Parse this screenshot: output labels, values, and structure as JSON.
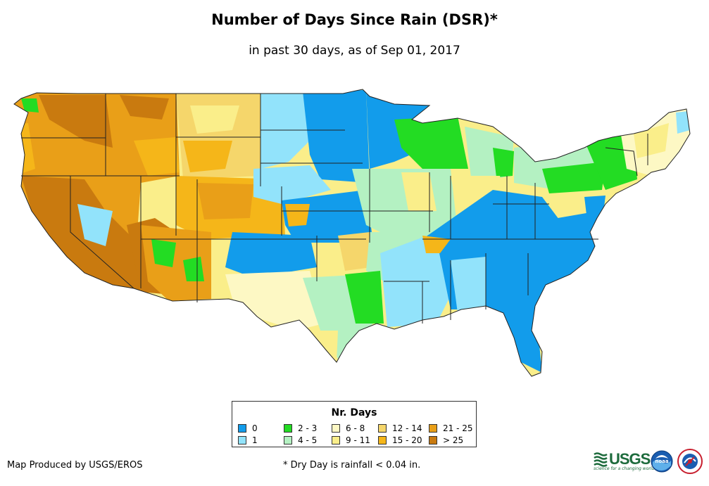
{
  "title": "Number of Days Since Rain (DSR)*",
  "subtitle": "in past 30 days, as of Sep 01, 2017",
  "legend": {
    "title": "Nr. Days",
    "items": [
      {
        "label": "0",
        "color": "#129ceb"
      },
      {
        "label": "1",
        "color": "#92e3fb"
      },
      {
        "label": "2 - 3",
        "color": "#23dc23"
      },
      {
        "label": "4 - 5",
        "color": "#b4f1c2"
      },
      {
        "label": "6 - 8",
        "color": "#fdf8c4"
      },
      {
        "label": "9 - 11",
        "color": "#faee8a"
      },
      {
        "label": "12 - 14",
        "color": "#f5d66b"
      },
      {
        "label": "15 - 20",
        "color": "#f5b619"
      },
      {
        "label": "21 - 25",
        "color": "#e99f18"
      },
      {
        "label": "> 25",
        "color": "#c97a0f"
      }
    ]
  },
  "footer": {
    "producer": "Map Produced by USGS/EROS",
    "note": "* Dry Day is rainfall < 0.04 in."
  },
  "logos": {
    "usgs": "USGS",
    "usgs_tagline": "science for a changing world",
    "noaa": "noaa"
  }
}
